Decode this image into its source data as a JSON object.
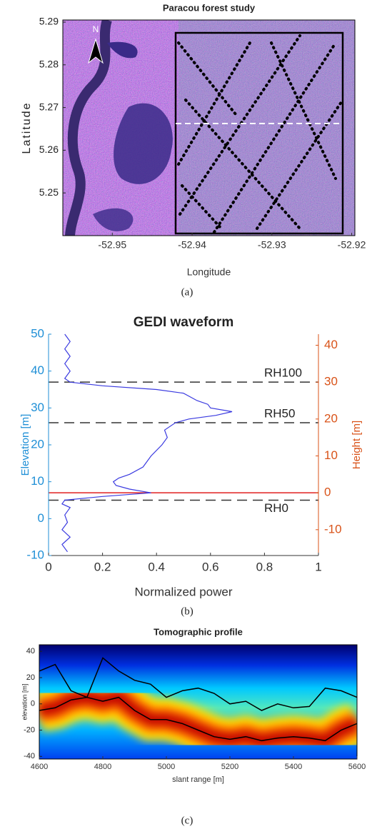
{
  "chart_data": [
    {
      "type": "image",
      "title": "Paracou forest study",
      "xlabel": "Longitude",
      "ylabel": "Latitude",
      "caption": "(a)",
      "compass_label": "N",
      "xlim": [
        -52.9562,
        -52.9196
      ],
      "xticks": [
        -52.95,
        -52.94,
        -52.93,
        -52.92
      ],
      "ylim": [
        5.24,
        5.2905
      ],
      "yticks": [
        5.25,
        5.26,
        5.27,
        5.28,
        5.29
      ]
    },
    {
      "type": "line",
      "title": "GEDI waveform",
      "xlabel": "Normalized power",
      "ylabel": "Elevation [m]",
      "y2label": "Height [m]",
      "caption": "(b)",
      "xlim": [
        0,
        1
      ],
      "xticks": [
        0,
        0.2,
        0.4,
        0.6,
        0.8,
        1
      ],
      "ylim": [
        -10,
        50
      ],
      "yticks": [
        -10,
        0,
        10,
        20,
        30,
        40,
        50
      ],
      "y_color": "#1f8fd6",
      "y2lim": [
        -17,
        43
      ],
      "y2ticks": [
        -10,
        0,
        10,
        20,
        30,
        40
      ],
      "y2_color": "#d95319",
      "series": [
        {
          "color": "#3a3ae0",
          "x": [
            0.07,
            0.05,
            0.08,
            0.05,
            0.07,
            0.06,
            0.08,
            0.05,
            0.06,
            0.2,
            0.38,
            0.3,
            0.25,
            0.24,
            0.26,
            0.3,
            0.35,
            0.38,
            0.42,
            0.44,
            0.43,
            0.47,
            0.52,
            0.62,
            0.68,
            0.6,
            0.59,
            0.55,
            0.5,
            0.4,
            0.2,
            0.08,
            0.06,
            0.08,
            0.06,
            0.08,
            0.06,
            0.08,
            0.06
          ],
          "y": [
            -9,
            -7,
            -5,
            -3,
            -1,
            1,
            3,
            4,
            5,
            6,
            7,
            8,
            9,
            10,
            11,
            12,
            14,
            17,
            20,
            22,
            24,
            26,
            27,
            28,
            29,
            30,
            31,
            32,
            34,
            35,
            36,
            37,
            38,
            40,
            42,
            44,
            46,
            48,
            50
          ]
        }
      ],
      "hlines": [
        {
          "label": "RH100",
          "y": 37,
          "color": "#333333",
          "dashed": true
        },
        {
          "label": "RH50",
          "y": 26,
          "color": "#333333",
          "dashed": true
        },
        {
          "label": "RH0",
          "y": 5,
          "color": "#333333",
          "dashed": true
        },
        {
          "y": 7,
          "color": "#e02020",
          "dashed": false
        }
      ]
    },
    {
      "type": "heatmap",
      "title": "Tomographic profile",
      "xlabel": "slant range [m]",
      "ylabel": "elevation [m]",
      "caption": "(c)",
      "xlim": [
        4600,
        5600
      ],
      "xticks": [
        4600,
        4800,
        5000,
        5200,
        5400,
        5600
      ],
      "ylim": [
        -42,
        45
      ],
      "yticks": [
        -40,
        -20,
        0,
        20,
        40
      ],
      "series": [
        {
          "color": "#000000",
          "x": [
            4600,
            4650,
            4700,
            4750,
            4800,
            4850,
            4900,
            4950,
            5000,
            5050,
            5100,
            5150,
            5200,
            5250,
            5300,
            5350,
            5400,
            5450,
            5500,
            5550,
            5600
          ],
          "y": [
            25,
            30,
            10,
            5,
            35,
            25,
            18,
            15,
            5,
            10,
            12,
            8,
            0,
            2,
            -5,
            0,
            -3,
            -2,
            12,
            10,
            5
          ]
        },
        {
          "color": "#000000",
          "x": [
            4600,
            4650,
            4700,
            4750,
            4800,
            4850,
            4900,
            4950,
            5000,
            5050,
            5100,
            5150,
            5200,
            5250,
            5300,
            5350,
            5400,
            5450,
            5500,
            5550,
            5600
          ],
          "y": [
            -5,
            -3,
            3,
            5,
            2,
            5,
            -5,
            -12,
            -12,
            -15,
            -20,
            -25,
            -27,
            -25,
            -28,
            -26,
            -25,
            -26,
            -28,
            -20,
            -15
          ]
        }
      ]
    }
  ]
}
